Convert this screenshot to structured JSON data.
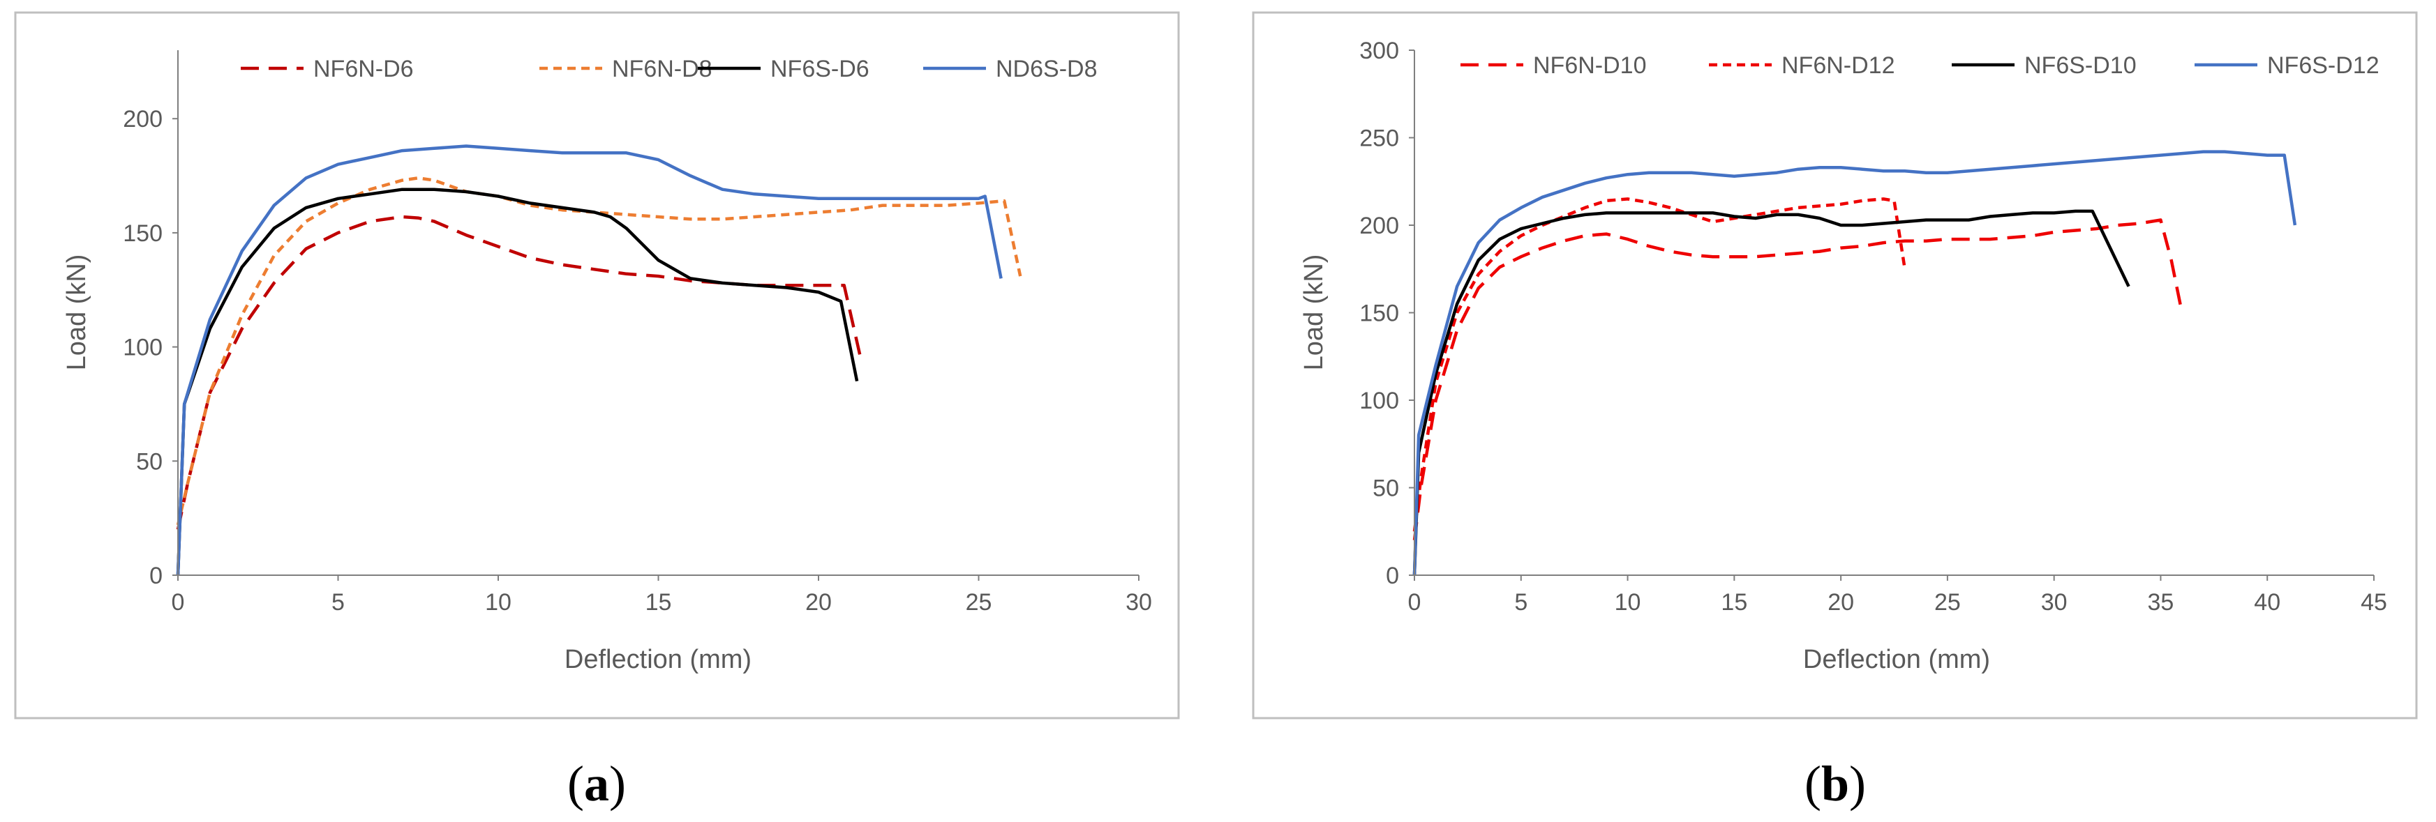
{
  "chart_data": [
    {
      "type": "line",
      "panel_label": "a",
      "title": "",
      "xlabel": "Deflection (mm)",
      "ylabel": "Load (kN)",
      "xlim": [
        0,
        30
      ],
      "ylim": [
        0,
        230
      ],
      "xticks": [
        0,
        5,
        10,
        15,
        20,
        25,
        30
      ],
      "yticks": [
        0,
        50,
        100,
        150,
        200
      ],
      "grid": false,
      "legend": "top",
      "series": [
        {
          "name": "NF6N-D6",
          "color": "#c00000",
          "dash": "long",
          "x": [
            0,
            0.3,
            1,
            2,
            3,
            4,
            5,
            6,
            7,
            7.5,
            8,
            9,
            10,
            11,
            12,
            13,
            14,
            15,
            16,
            17,
            18,
            19,
            20,
            20.8,
            21.3
          ],
          "y": [
            20,
            40,
            80,
            108,
            128,
            143,
            150,
            155,
            157,
            156.5,
            155,
            149,
            144,
            139,
            136,
            134,
            132,
            131,
            129,
            128,
            127,
            127,
            127,
            127,
            96
          ]
        },
        {
          "name": "NF6N-D8",
          "color": "#ed7d31",
          "dash": "short",
          "x": [
            0,
            0.3,
            1,
            2,
            3,
            4,
            5,
            6,
            7,
            7.5,
            8,
            9,
            10,
            11,
            12,
            13,
            14,
            15,
            16,
            17,
            18,
            19,
            20,
            21,
            22,
            23,
            24,
            25,
            25.8,
            26.3
          ],
          "y": [
            22,
            40,
            80,
            114,
            140,
            155,
            163,
            169,
            173,
            174,
            173,
            168,
            166,
            162,
            160,
            159,
            158,
            157,
            156,
            156,
            157,
            158,
            159,
            160,
            162,
            162,
            162,
            163,
            164,
            131
          ]
        },
        {
          "name": "NF6S-D6",
          "color": "#000000",
          "dash": "solid",
          "x": [
            0,
            0.2,
            1,
            2,
            3,
            4,
            5,
            6,
            7,
            8,
            9,
            10,
            11,
            12,
            13,
            13.5,
            14,
            15,
            16,
            17,
            18,
            19,
            20,
            20.7,
            21.2
          ],
          "y": [
            0,
            75,
            108,
            135,
            152,
            161,
            165,
            167,
            169,
            169,
            168,
            166,
            163,
            161,
            159,
            157,
            152,
            138,
            130,
            128,
            127,
            126,
            124,
            120,
            85
          ]
        },
        {
          "name": "ND6S-D8",
          "color": "#4472c4",
          "dash": "solid",
          "x": [
            0,
            0.2,
            1,
            2,
            3,
            4,
            5,
            6,
            7,
            8,
            9,
            10,
            11,
            12,
            13,
            14,
            15,
            16,
            17,
            18,
            19,
            20,
            21,
            22,
            23,
            24,
            25,
            25.2,
            25.7
          ],
          "y": [
            0,
            75,
            112,
            142,
            162,
            174,
            180,
            183,
            186,
            187,
            188,
            187,
            186,
            185,
            185,
            185,
            182,
            175,
            169,
            167,
            166,
            165,
            165,
            165,
            165,
            165,
            165,
            166,
            130
          ]
        }
      ]
    },
    {
      "type": "line",
      "panel_label": "b",
      "title": "",
      "xlabel": "Deflection (mm)",
      "ylabel": "Load (kN)",
      "xlim": [
        0,
        45
      ],
      "ylim": [
        0,
        300
      ],
      "xticks": [
        0,
        5,
        10,
        15,
        20,
        25,
        30,
        35,
        40,
        45
      ],
      "yticks": [
        0,
        50,
        100,
        150,
        200,
        250,
        300
      ],
      "grid": false,
      "legend": "top",
      "series": [
        {
          "name": "NF6N-D10",
          "color": "#ee0000",
          "dash": "long",
          "x": [
            0,
            0.3,
            1,
            2,
            3,
            4,
            5,
            6,
            7,
            8,
            9,
            10,
            11,
            12,
            13,
            14,
            15,
            16,
            17,
            18,
            19,
            20,
            21,
            22,
            23,
            24,
            25,
            26,
            27,
            28,
            29,
            30,
            31,
            32,
            33,
            34,
            35,
            35.5,
            36
          ],
          "y": [
            20,
            50,
            100,
            140,
            164,
            176,
            182,
            187,
            191,
            194,
            195,
            192,
            188,
            185,
            183,
            182,
            182,
            182,
            183,
            184,
            185,
            187,
            188,
            190,
            191,
            191,
            192,
            192,
            192,
            193,
            194,
            196,
            197,
            198,
            200,
            201,
            203,
            180,
            150
          ]
        },
        {
          "name": "NF6N-D12",
          "color": "#ee0000",
          "dash": "short",
          "x": [
            0,
            0.3,
            1,
            2,
            3,
            4,
            5,
            6,
            7,
            8,
            9,
            10,
            11,
            12,
            13,
            14,
            15,
            16,
            17,
            18,
            19,
            20,
            21,
            22,
            22.5,
            23
          ],
          "y": [
            25,
            55,
            110,
            150,
            172,
            185,
            194,
            200,
            205,
            210,
            214,
            215,
            213,
            210,
            206,
            202,
            204,
            206,
            208,
            210,
            211,
            212,
            214,
            215,
            214,
            175
          ]
        },
        {
          "name": "NF6S-D10",
          "color": "#000000",
          "dash": "solid",
          "x": [
            0,
            0.2,
            1,
            2,
            3,
            4,
            5,
            6,
            7,
            8,
            9,
            10,
            11,
            12,
            13,
            14,
            15,
            16,
            17,
            18,
            19,
            20,
            21,
            22,
            23,
            24,
            25,
            26,
            27,
            28,
            29,
            30,
            31,
            31.8,
            33.5
          ],
          "y": [
            0,
            70,
            115,
            155,
            180,
            192,
            198,
            201,
            204,
            206,
            207,
            207,
            207,
            207,
            207,
            207,
            205,
            204,
            206,
            206,
            204,
            200,
            200,
            201,
            202,
            203,
            203,
            203,
            205,
            206,
            207,
            207,
            208,
            208,
            165
          ]
        },
        {
          "name": "NF6S-D12",
          "color": "#4472c4",
          "dash": "solid",
          "x": [
            0,
            0.2,
            1,
            2,
            3,
            4,
            5,
            6,
            7,
            8,
            9,
            10,
            11,
            12,
            13,
            14,
            15,
            16,
            17,
            18,
            19,
            20,
            21,
            22,
            23,
            24,
            25,
            26,
            27,
            28,
            29,
            30,
            31,
            32,
            33,
            34,
            35,
            36,
            37,
            38,
            39,
            40,
            40.8,
            41.3
          ],
          "y": [
            0,
            80,
            120,
            165,
            190,
            203,
            210,
            216,
            220,
            224,
            227,
            229,
            230,
            230,
            230,
            229,
            228,
            229,
            230,
            232,
            233,
            233,
            232,
            231,
            231,
            230,
            230,
            231,
            232,
            233,
            234,
            235,
            236,
            237,
            238,
            239,
            240,
            241,
            242,
            242,
            241,
            240,
            240,
            200
          ]
        }
      ]
    }
  ]
}
